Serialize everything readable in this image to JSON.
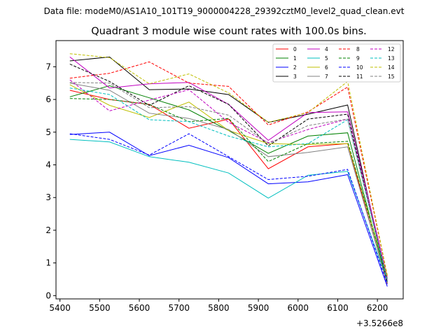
{
  "chart_data": {
    "type": "line",
    "suptitle": "Data file: modeM0/AS1A10_101T19_9000004228_29392cztM0_level2_quad_clean.evt",
    "title": "Quadrant 3 module wise count rates with 100.0s bins.",
    "xlabel": "",
    "ylabel": "",
    "x_offset_label": "+3.5266e8",
    "x": [
      5425,
      5525,
      5625,
      5725,
      5825,
      5925,
      6025,
      6125,
      6225
    ],
    "xlim": [
      5390,
      6265
    ],
    "ylim": [
      -0.1,
      7.8
    ],
    "xticks": [
      5400,
      5500,
      5600,
      5700,
      5800,
      5900,
      6000,
      6100,
      6200
    ],
    "yticks": [
      0,
      1,
      2,
      3,
      4,
      5,
      6,
      7
    ],
    "grid": false,
    "legend": {
      "placement": "top-right",
      "columns": 4
    },
    "series": [
      {
        "name": "0",
        "color": "#ff0000",
        "style": "solid",
        "values": [
          6.28,
          6.0,
          5.85,
          5.12,
          5.4,
          3.88,
          4.55,
          4.65,
          0.35
        ]
      },
      {
        "name": "1",
        "color": "#008000",
        "style": "solid",
        "values": [
          6.08,
          6.42,
          6.05,
          5.68,
          5.05,
          4.35,
          4.88,
          4.98,
          0.4
        ]
      },
      {
        "name": "2",
        "color": "#0000ff",
        "style": "solid",
        "values": [
          4.93,
          5.0,
          4.28,
          4.6,
          4.22,
          3.42,
          3.48,
          3.7,
          0.28
        ]
      },
      {
        "name": "3",
        "color": "#000000",
        "style": "solid",
        "values": [
          7.18,
          7.3,
          6.3,
          6.32,
          6.15,
          5.3,
          5.55,
          5.83,
          0.4
        ]
      },
      {
        "name": "4",
        "color": "#c000c0",
        "style": "solid",
        "values": [
          7.3,
          6.35,
          6.48,
          6.52,
          5.85,
          4.75,
          5.6,
          5.62,
          0.55
        ]
      },
      {
        "name": "5",
        "color": "#00bfbf",
        "style": "solid",
        "values": [
          4.78,
          4.7,
          4.25,
          4.08,
          3.75,
          2.98,
          3.68,
          3.8,
          0.45
        ]
      },
      {
        "name": "6",
        "color": "#bfbf00",
        "style": "solid",
        "values": [
          6.45,
          5.82,
          5.45,
          5.92,
          5.05,
          4.65,
          4.62,
          4.65,
          0.6
        ]
      },
      {
        "name": "7",
        "color": "#808080",
        "style": "solid",
        "values": [
          6.5,
          6.28,
          5.58,
          5.42,
          5.08,
          4.25,
          4.38,
          4.55,
          0.38
        ]
      },
      {
        "name": "8",
        "color": "#ff0000",
        "style": "dashed",
        "values": [
          6.65,
          6.8,
          7.15,
          6.5,
          6.4,
          5.22,
          5.62,
          6.38,
          0.6
        ]
      },
      {
        "name": "9",
        "color": "#008000",
        "style": "dashed",
        "values": [
          6.03,
          6.0,
          5.85,
          5.32,
          5.42,
          4.1,
          4.65,
          4.72,
          0.48
        ]
      },
      {
        "name": "10",
        "color": "#0000ff",
        "style": "dashed",
        "values": [
          4.95,
          4.78,
          4.3,
          4.95,
          4.25,
          3.55,
          3.65,
          3.86,
          0.35
        ]
      },
      {
        "name": "11",
        "color": "#000000",
        "style": "dashed",
        "values": [
          7.08,
          6.55,
          5.82,
          6.42,
          5.85,
          4.58,
          5.4,
          5.55,
          0.42
        ]
      },
      {
        "name": "12",
        "color": "#c000c0",
        "style": "dashed",
        "values": [
          6.6,
          5.65,
          5.98,
          6.3,
          5.3,
          4.68,
          5.08,
          5.4,
          0.5
        ]
      },
      {
        "name": "13",
        "color": "#00bfbf",
        "style": "dashed",
        "values": [
          6.35,
          6.15,
          5.38,
          5.32,
          4.88,
          4.55,
          4.65,
          5.38,
          0.45
        ]
      },
      {
        "name": "14",
        "color": "#bfbf00",
        "style": "dashed",
        "values": [
          7.4,
          7.28,
          6.48,
          6.78,
          6.2,
          5.3,
          5.6,
          6.55,
          0.62
        ]
      },
      {
        "name": "15",
        "color": "#808080",
        "style": "dashed",
        "values": [
          6.52,
          6.5,
          5.75,
          5.78,
          5.52,
          4.65,
          5.2,
          5.4,
          0.52
        ]
      }
    ]
  }
}
